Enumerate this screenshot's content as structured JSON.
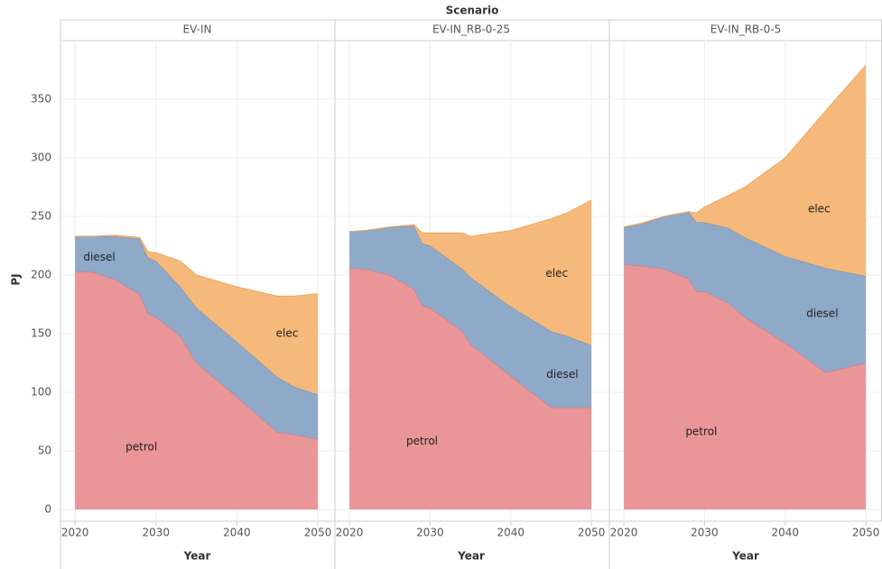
{
  "facet_title": "Scenario",
  "y_label": "PJ",
  "chart_data": [
    {
      "type": "area",
      "stacked": true,
      "title": "EV-IN",
      "x_label": "Year",
      "x": [
        2020,
        2022,
        2025,
        2028,
        2029,
        2030,
        2033,
        2035,
        2040,
        2045,
        2047,
        2050
      ],
      "xlim": [
        2018.2,
        2052
      ],
      "xticks": [
        2020,
        2030,
        2040,
        2050
      ],
      "ylim": [
        -10,
        400
      ],
      "yticks": [
        0,
        50,
        100,
        150,
        200,
        250,
        300,
        350
      ],
      "grid": true,
      "series": [
        {
          "name": "petrol",
          "color": "#ea9598",
          "values": [
            203,
            203,
            196,
            183,
            167,
            164,
            148,
            125,
            96,
            66,
            64,
            60
          ]
        },
        {
          "name": "diesel",
          "color": "#8fa9c8",
          "values": [
            30,
            30,
            37,
            48,
            48,
            48,
            42,
            47,
            47,
            47,
            41,
            38
          ]
        },
        {
          "name": "elec",
          "color": "#f5b97b",
          "values": [
            0,
            0,
            1,
            1,
            5,
            7,
            22,
            28,
            47,
            69,
            77,
            86
          ]
        }
      ]
    },
    {
      "type": "area",
      "stacked": true,
      "title": "EV-IN_RB-0-25",
      "x_label": "Year",
      "x": [
        2020,
        2022,
        2025,
        2028,
        2029,
        2030,
        2034,
        2035,
        2040,
        2045,
        2047,
        2050
      ],
      "xlim": [
        2018.2,
        2052
      ],
      "xticks": [
        2020,
        2030,
        2040,
        2050
      ],
      "ylim": [
        -10,
        400
      ],
      "yticks": [
        0,
        50,
        100,
        150,
        200,
        250,
        300,
        350
      ],
      "grid": true,
      "series": [
        {
          "name": "petrol",
          "color": "#ea9598",
          "values": [
            206,
            205,
            200,
            188,
            174,
            172,
            152,
            141,
            114,
            87,
            87,
            87
          ]
        },
        {
          "name": "diesel",
          "color": "#8fa9c8",
          "values": [
            31,
            33,
            41,
            54,
            53,
            53,
            53,
            57,
            59,
            65,
            61,
            53
          ]
        },
        {
          "name": "elec",
          "color": "#f5b97b",
          "values": [
            0,
            0,
            0,
            1,
            9,
            11,
            31,
            35,
            65,
            96,
            105,
            124
          ]
        }
      ]
    },
    {
      "type": "area",
      "stacked": true,
      "title": "EV-IN_RB-0-5",
      "x_label": "Year",
      "x": [
        2020,
        2022,
        2025,
        2028,
        2029,
        2030,
        2033,
        2035,
        2040,
        2045,
        2050
      ],
      "xlim": [
        2018.2,
        2052
      ],
      "xticks": [
        2020,
        2030,
        2040,
        2050
      ],
      "ylim": [
        -10,
        400
      ],
      "yticks": [
        0,
        50,
        100,
        150,
        200,
        250,
        300,
        350
      ],
      "grid": true,
      "series": [
        {
          "name": "petrol",
          "color": "#ea9598",
          "values": [
            209,
            208,
            205,
            197,
            186,
            186,
            176,
            164,
            142,
            117,
            125
          ]
        },
        {
          "name": "diesel",
          "color": "#8fa9c8",
          "values": [
            32,
            35,
            45,
            57,
            59,
            59,
            64,
            68,
            74,
            89,
            74
          ]
        },
        {
          "name": "elec",
          "color": "#f5b97b",
          "values": [
            0,
            1,
            0,
            0,
            8,
            13,
            28,
            43,
            84,
            134,
            180
          ]
        }
      ]
    }
  ]
}
